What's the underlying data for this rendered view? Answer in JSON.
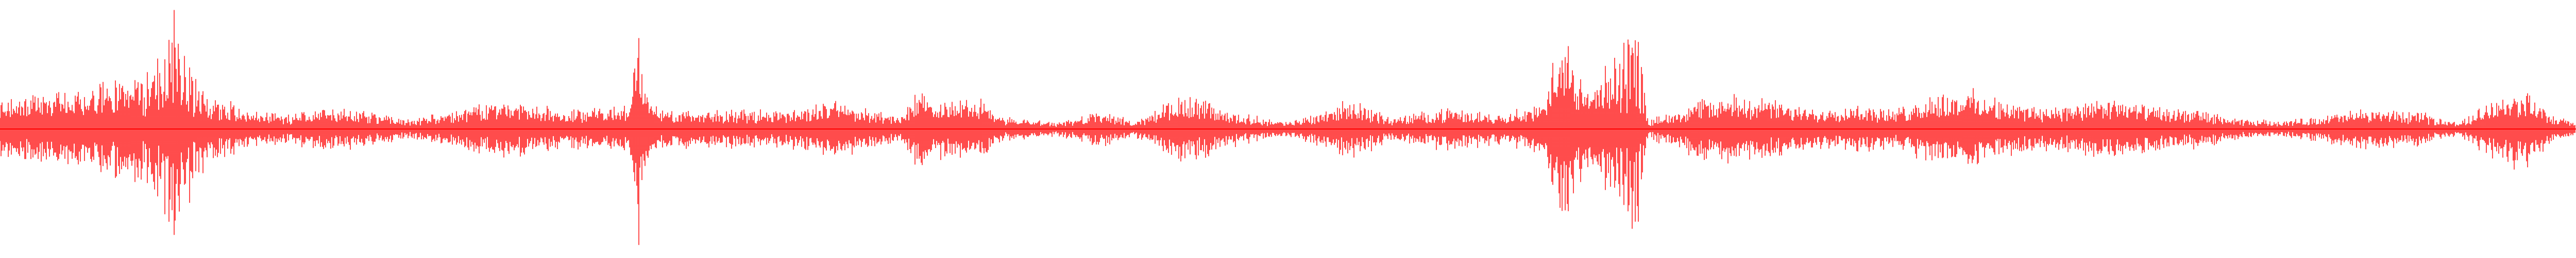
{
  "waveform": {
    "color": "#ff0000",
    "background": "#ffffff",
    "envelope": [
      [
        0.0,
        0.26
      ],
      [
        0.03,
        0.33
      ],
      [
        0.05,
        0.44
      ],
      [
        0.06,
        0.62
      ],
      [
        0.067,
        1.0
      ],
      [
        0.075,
        0.55
      ],
      [
        0.08,
        0.3
      ],
      [
        0.09,
        0.22
      ],
      [
        0.1,
        0.16
      ],
      [
        0.11,
        0.12
      ],
      [
        0.125,
        0.2
      ],
      [
        0.14,
        0.16
      ],
      [
        0.16,
        0.08
      ],
      [
        0.185,
        0.2
      ],
      [
        0.2,
        0.24
      ],
      [
        0.22,
        0.16
      ],
      [
        0.245,
        0.22
      ],
      [
        0.248,
        1.0
      ],
      [
        0.252,
        0.2
      ],
      [
        0.27,
        0.18
      ],
      [
        0.3,
        0.16
      ],
      [
        0.325,
        0.24
      ],
      [
        0.35,
        0.12
      ],
      [
        0.355,
        0.3
      ],
      [
        0.38,
        0.26
      ],
      [
        0.39,
        0.1
      ],
      [
        0.41,
        0.06
      ],
      [
        0.43,
        0.16
      ],
      [
        0.44,
        0.06
      ],
      [
        0.46,
        0.3
      ],
      [
        0.48,
        0.14
      ],
      [
        0.5,
        0.06
      ],
      [
        0.525,
        0.26
      ],
      [
        0.54,
        0.1
      ],
      [
        0.56,
        0.18
      ],
      [
        0.58,
        0.14
      ],
      [
        0.6,
        0.22
      ],
      [
        0.605,
        1.0
      ],
      [
        0.615,
        0.34
      ],
      [
        0.62,
        0.4
      ],
      [
        0.635,
        0.95
      ],
      [
        0.64,
        0.08
      ],
      [
        0.66,
        0.26
      ],
      [
        0.68,
        0.3
      ],
      [
        0.7,
        0.18
      ],
      [
        0.72,
        0.22
      ],
      [
        0.735,
        0.16
      ],
      [
        0.75,
        0.3
      ],
      [
        0.765,
        0.34
      ],
      [
        0.78,
        0.22
      ],
      [
        0.8,
        0.2
      ],
      [
        0.82,
        0.26
      ],
      [
        0.84,
        0.18
      ],
      [
        0.855,
        0.16
      ],
      [
        0.87,
        0.08
      ],
      [
        0.89,
        0.08
      ],
      [
        0.92,
        0.18
      ],
      [
        0.94,
        0.14
      ],
      [
        0.955,
        0.06
      ],
      [
        0.97,
        0.3
      ],
      [
        0.98,
        0.34
      ],
      [
        0.99,
        0.12
      ],
      [
        1.0,
        0.06
      ]
    ]
  }
}
